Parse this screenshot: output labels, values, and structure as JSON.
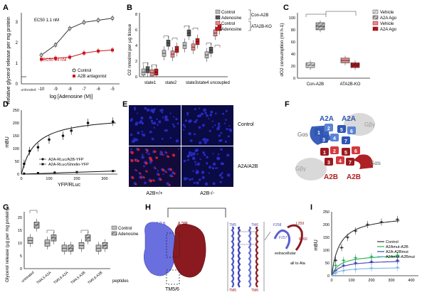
{
  "panels": {
    "A": {
      "letter": "A",
      "ylabel": "Relative glycerol release per mg protein",
      "xlabel": "log [Adenosine (M)]",
      "xticks": [
        "-10",
        "-9",
        "-8",
        "-7",
        "-6",
        "-5"
      ],
      "xbreak_label": "untreated",
      "yticks": [
        "0",
        "1",
        "2",
        "3"
      ],
      "ec_control": "EC50 1.1 nM",
      "ec_antagonist": "EC50 44 nM",
      "legend": [
        "Control",
        "A2B antagonist"
      ],
      "colors": {
        "control": "#333333",
        "antagonist": "#c8161d"
      }
    },
    "B": {
      "letter": "B",
      "ylabel": "O2 nmol/ml per µg tissue",
      "categories": [
        "state1",
        "state2",
        "state3",
        "state4 uncoupled"
      ],
      "yticks": [
        "0",
        "2",
        "4",
        "6",
        "8"
      ],
      "legend": [
        "Control",
        "Adenosine",
        "Control",
        "Adenosine"
      ],
      "group_labels": [
        "Con-A2B",
        "ATA2B-KO"
      ]
    },
    "C": {
      "letter": "C",
      "ylabel": "dO2 consumption (ml h-1)",
      "yticks": [
        "0",
        "20",
        "40",
        "60",
        "80",
        "100"
      ],
      "categories": [
        "Con-A2B",
        "ATA2B-KO"
      ],
      "legend": [
        "Vehicle",
        "A2A Ago",
        "Vehicle",
        "A2A Ago"
      ]
    },
    "D": {
      "letter": "D",
      "ylabel": "mBU",
      "xlabel": "YFP/RLuc",
      "xticks": [
        "0",
        "100",
        "200",
        "300"
      ],
      "yticks": [
        "0",
        "50",
        "100",
        "150",
        "200",
        "250"
      ],
      "legend": [
        "A2A-RLuc/A2B-YFP",
        "A2A-RLuc/Ghrelin-YFP"
      ]
    },
    "E": {
      "letter": "E",
      "row_labels": [
        "Control",
        "A2A/A2B"
      ],
      "col_labels": [
        "A2B+/+",
        "A2B-/-"
      ]
    },
    "F": {
      "letter": "F",
      "receptor_labels": [
        "A2A",
        "A2A",
        "A2B",
        "A2B"
      ],
      "g_labels": [
        "Gαs",
        "Gβγ",
        "Gβγ",
        "Gαs"
      ]
    },
    "G": {
      "letter": "G",
      "ylabel": "Glycerol release (µg per mg protein)",
      "yticks": [
        "0",
        "5",
        "10",
        "15",
        "20"
      ],
      "categories": [
        "untreated",
        "TM4,5 A2A",
        "TM5,6 A2A",
        "TM4,5 A2B",
        "TM5,6 A2B"
      ],
      "xlabel": "peptides",
      "legend": [
        "Control",
        "Adenosine"
      ]
    },
    "H": {
      "letter": "H",
      "label_a2a": "A2A",
      "label_a2b": "A2B",
      "label_tm": "TM5/6",
      "zoom_labels": [
        "TM5",
        "TM6",
        "TM5",
        "TM6"
      ],
      "residues": [
        "F258",
        "L259",
        "F257",
        "P260"
      ],
      "extracellular": "extracellular",
      "all_to_ala": "all to Ala"
    },
    "I": {
      "letter": "I",
      "ylabel": "mBU",
      "xticks": [
        "0",
        "100",
        "200",
        "300",
        "400"
      ],
      "yticks": [
        "0",
        "50",
        "100",
        "150",
        "200",
        "250"
      ],
      "legend": [
        "Control",
        "A2Amut-A2B",
        "A2A-A2Bmut",
        "A2Amut-A2Bmut"
      ]
    }
  },
  "chart_data": [
    {
      "type": "line",
      "panel": "A",
      "x": [
        -10,
        -9,
        -8,
        -7,
        -6,
        -5
      ],
      "series": [
        {
          "name": "Control",
          "values": [
            1.4,
            1.9,
            2.7,
            3.0,
            3.1,
            3.2
          ]
        },
        {
          "name": "A2B antagonist",
          "values": [
            1.2,
            1.25,
            1.3,
            1.5,
            1.6,
            1.65
          ]
        }
      ],
      "xlabel": "log [Adenosine (M)]",
      "ylabel": "Relative glycerol release per mg protein",
      "ylim": [
        0,
        3.5
      ]
    },
    {
      "type": "bar",
      "panel": "B",
      "categories": [
        "state1",
        "state2",
        "state3",
        "state4 uncoupled"
      ],
      "series": [
        {
          "name": "Control",
          "values": [
            0.6,
            3.0,
            4.0,
            2.8
          ]
        },
        {
          "name": "Adenosine",
          "values": [
            0.9,
            4.3,
            5.6,
            3.4
          ]
        },
        {
          "name": "Control",
          "values": [
            0.5,
            2.9,
            3.8,
            5.6
          ]
        },
        {
          "name": "Adenosine",
          "values": [
            0.6,
            3.5,
            4.5,
            6.3
          ]
        }
      ],
      "ylabel": "O2 nmol/ml per µg tissue",
      "ylim": [
        0,
        8
      ]
    },
    {
      "type": "bar",
      "panel": "C",
      "categories": [
        "Con-A2B",
        "ATA2B-KO"
      ],
      "series": [
        {
          "name": "Vehicle",
          "values": [
            22,
            30
          ]
        },
        {
          "name": "A2A Ago",
          "values": [
            88,
            22
          ]
        }
      ],
      "ylabel": "dO2 consumption (ml h-1)",
      "ylim": [
        0,
        100
      ]
    },
    {
      "type": "line",
      "panel": "D",
      "series": [
        {
          "name": "A2A-RLuc/A2B-YFP",
          "x": [
            10,
            30,
            60,
            100,
            150,
            180,
            240,
            330
          ],
          "values": [
            40,
            90,
            105,
            135,
            150,
            170,
            200,
            205
          ]
        },
        {
          "name": "A2A-RLuc/Ghrelin-YFP",
          "x": [
            10,
            60,
            120,
            200,
            330
          ],
          "values": [
            2,
            4,
            6,
            8,
            12
          ]
        }
      ],
      "xlabel": "YFP/RLuc",
      "ylabel": "mBU",
      "ylim": [
        0,
        250
      ]
    },
    {
      "type": "bar",
      "panel": "G",
      "categories": [
        "untreated",
        "TM4,5 A2A",
        "TM5,6 A2A",
        "TM4,5 A2B",
        "TM5,6 A2B"
      ],
      "series": [
        {
          "name": "Control",
          "values": [
            11,
            10,
            8,
            9,
            8
          ]
        },
        {
          "name": "Adenosine",
          "values": [
            17,
            12,
            8,
            12,
            9
          ]
        }
      ],
      "ylabel": "Glycerol release (µg per mg protein)",
      "ylim": [
        0,
        20
      ]
    },
    {
      "type": "line",
      "panel": "I",
      "series": [
        {
          "name": "Control",
          "x": [
            20,
            50,
            80,
            120,
            180,
            250,
            330
          ],
          "values": [
            60,
            110,
            150,
            175,
            200,
            210,
            220
          ]
        },
        {
          "name": "A2Amut-A2B",
          "x": [
            20,
            60,
            120,
            200,
            330
          ],
          "values": [
            40,
            60,
            70,
            75,
            80
          ]
        },
        {
          "name": "A2A-A2Bmut",
          "x": [
            20,
            60,
            120,
            200,
            330
          ],
          "values": [
            20,
            40,
            50,
            55,
            60
          ]
        },
        {
          "name": "A2Amut-A2Bmut",
          "x": [
            20,
            60,
            120,
            200,
            330
          ],
          "values": [
            10,
            20,
            25,
            30,
            32
          ]
        }
      ],
      "ylabel": "mBU",
      "ylim": [
        0,
        250
      ]
    }
  ]
}
